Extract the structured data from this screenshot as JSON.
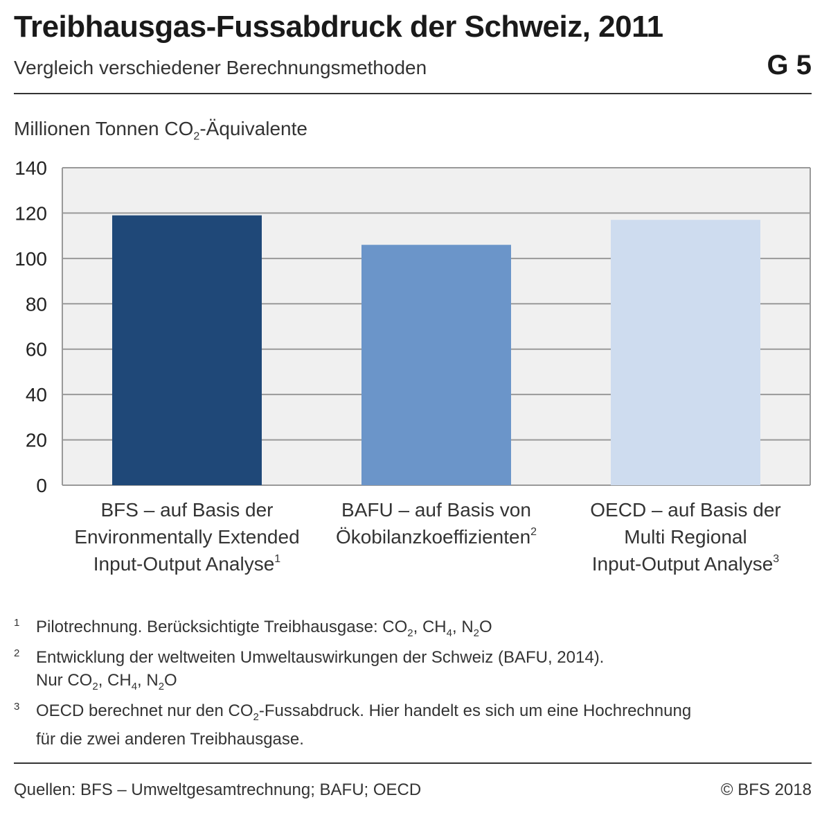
{
  "header": {
    "title": "Treibhausgas-Fussabdruck der Schweiz, 2011",
    "subtitle": "Vergleich verschiedener Berechnungsmethoden",
    "badge": "G 5"
  },
  "unit_label": {
    "prefix": "Millionen Tonnen CO",
    "sub": "2",
    "suffix": "-Äquivalente"
  },
  "chart_data": {
    "type": "bar",
    "categories": [
      [
        "BFS – auf Basis der",
        "Environmentally Extended",
        "Input-Output Analyse"
      ],
      [
        "BAFU – auf Basis von",
        "Ökobilanzkoeffizienten"
      ],
      [
        "OECD – auf Basis der",
        "Multi Regional",
        "Input-Output Analyse"
      ]
    ],
    "category_footnotes": [
      "1",
      "2",
      "3"
    ],
    "values": [
      119,
      106,
      117
    ],
    "colors": [
      "#1f4878",
      "#6b95c9",
      "#cedcef"
    ],
    "ylim": [
      0,
      140
    ],
    "yticks": [
      0,
      20,
      40,
      60,
      80,
      100,
      120,
      140
    ],
    "grid": true,
    "plot_background": "#f0f0f0",
    "grid_color": "#999999"
  },
  "footnotes": [
    {
      "num": "1",
      "lines": [
        [
          [
            "Pilotrechnung. Berücksichtigte Treibhausgase: CO",
            "2",
            ", CH",
            "4",
            ", N",
            "2",
            "O"
          ]
        ]
      ]
    },
    {
      "num": "2",
      "lines": [
        [
          [
            "Entwicklung der weltweiten Umweltauswirkungen der Schweiz (BAFU, 2014)."
          ]
        ],
        [
          [
            "Nur CO",
            "2",
            ", CH",
            "4",
            ", N",
            "2",
            "O"
          ]
        ]
      ]
    },
    {
      "num": "3",
      "lines": [
        [
          [
            "OECD berechnet nur den CO",
            "2",
            "-Fussabdruck. Hier handelt es sich um eine Hochrechnung"
          ]
        ],
        [
          [
            "für die zwei anderen Treibhausgase."
          ]
        ]
      ]
    }
  ],
  "footer": {
    "sources": "Quellen: BFS – Umweltgesamtrechnung; BAFU; OECD",
    "copyright": "© BFS 2018"
  }
}
